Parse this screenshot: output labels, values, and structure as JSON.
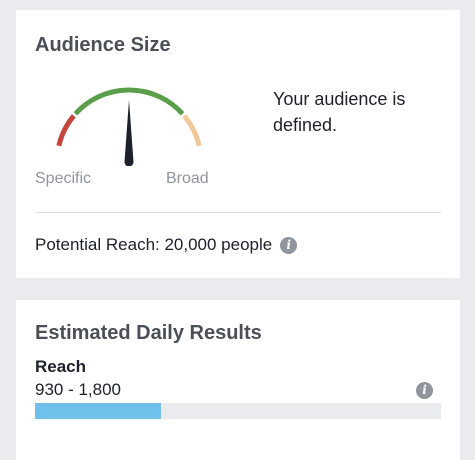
{
  "audience_size": {
    "title": "Audience Size",
    "gauge": {
      "label_left": "Specific",
      "label_right": "Broad",
      "needle_level": 0.5,
      "colors": {
        "specific": "#c4463a",
        "defined": "#5a9e4a",
        "broad": "#f1c89a",
        "needle": "#1d2129"
      }
    },
    "status": "Your audience is defined.",
    "potential_reach": "Potential Reach: 20,000 people",
    "info_icon": "info-icon"
  },
  "estimated_daily_results": {
    "title": "Estimated Daily Results",
    "metric_label": "Reach",
    "metric_range": "930 - 1,800",
    "info_icon": "info-icon",
    "progress_fraction": 0.31,
    "progress_color": "#6fc1eb"
  }
}
